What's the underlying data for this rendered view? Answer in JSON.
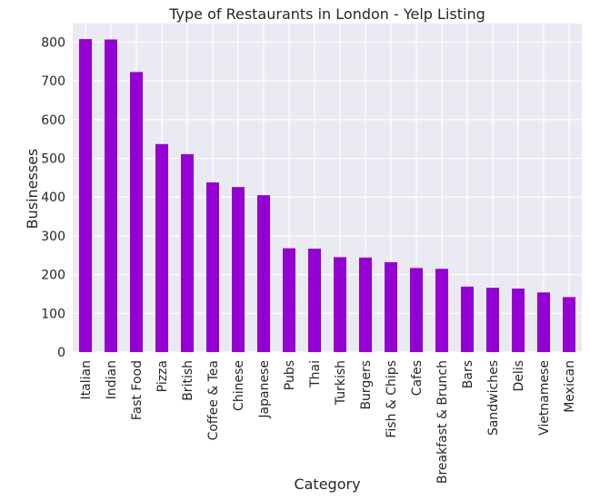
{
  "chart_data": {
    "type": "bar",
    "title": "Type of Restaurants in London - Yelp Listing",
    "xlabel": "Category",
    "ylabel": "Businesses",
    "categories": [
      "Italian",
      "Indian",
      "Fast Food",
      "Pizza",
      "British",
      "Coffee & Tea",
      "Chinese",
      "Japanese",
      "Pubs",
      "Thai",
      "Turkish",
      "Burgers",
      "Fish & Chips",
      "Cafes",
      "Breakfast & Brunch",
      "Bars",
      "Sandwiches",
      "Delis",
      "Vietnamese",
      "Mexican"
    ],
    "values": [
      808,
      807,
      723,
      537,
      511,
      438,
      426,
      405,
      268,
      267,
      245,
      244,
      232,
      217,
      215,
      169,
      166,
      164,
      154,
      142
    ],
    "yticks": [
      0,
      100,
      200,
      300,
      400,
      500,
      600,
      700,
      800
    ],
    "ylim": [
      0,
      848
    ],
    "grid": true,
    "bar_color": "#9400D3",
    "plot_background": "#EAEAF2",
    "grid_color": "#FFFFFF"
  }
}
